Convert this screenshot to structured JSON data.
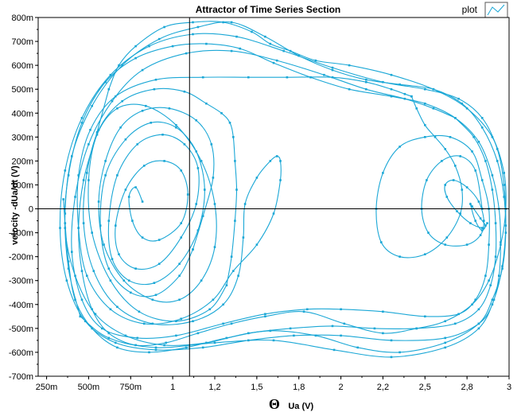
{
  "chart_data": {
    "type": "line",
    "title": "Attractor of Time Series Section",
    "xlabel_symbol": "Θ",
    "xlabel": "Ua (V)",
    "ylabel": "velocity -dUa/dt  (V)",
    "xlim": [
      0.2,
      3.0
    ],
    "ylim": [
      -0.7,
      0.8
    ],
    "x_ticks": [
      {
        "value": 0.25,
        "label": "250m"
      },
      {
        "value": 0.5,
        "label": "500m"
      },
      {
        "value": 0.75,
        "label": "750m"
      },
      {
        "value": 1.0,
        "label": "1"
      },
      {
        "value": 1.25,
        "label": "1,2"
      },
      {
        "value": 1.5,
        "label": "1,5"
      },
      {
        "value": 1.75,
        "label": "1,8"
      },
      {
        "value": 2.0,
        "label": "2"
      },
      {
        "value": 2.25,
        "label": "2,2"
      },
      {
        "value": 2.5,
        "label": "2,5"
      },
      {
        "value": 2.75,
        "label": "2,8"
      },
      {
        "value": 3.0,
        "label": "3"
      }
    ],
    "y_ticks": [
      {
        "value": 0.8,
        "label": "800m"
      },
      {
        "value": 0.7,
        "label": "700m"
      },
      {
        "value": 0.6,
        "label": "600m"
      },
      {
        "value": 0.5,
        "label": "500m"
      },
      {
        "value": 0.4,
        "label": "400m"
      },
      {
        "value": 0.3,
        "label": "300m"
      },
      {
        "value": 0.2,
        "label": "200m"
      },
      {
        "value": 0.1,
        "label": "100m"
      },
      {
        "value": 0.0,
        "label": "0"
      },
      {
        "value": -0.1,
        "label": "-100m"
      },
      {
        "value": -0.2,
        "label": "-200m"
      },
      {
        "value": -0.3,
        "label": "-300m"
      },
      {
        "value": -0.4,
        "label": "-400m"
      },
      {
        "value": -0.5,
        "label": "-500m"
      },
      {
        "value": -0.6,
        "label": "-600m"
      },
      {
        "value": -0.7,
        "label": "-700m"
      }
    ],
    "cursor": {
      "x": 1.1,
      "y": 0.0
    },
    "legend": {
      "label": "plot",
      "position": "top-right"
    },
    "grid": false,
    "series_color": "#1aa7d6",
    "series": [
      {
        "segments": [
          {
            "x": [
              0.82,
              0.78,
              0.74,
              0.76,
              0.82,
              0.92,
              1.05,
              1.09,
              1.05,
              0.95,
              0.83,
              0.72,
              0.66,
              0.68,
              0.78,
              0.92,
              1.05,
              1.14,
              1.15,
              1.07,
              0.94,
              0.79,
              0.67,
              0.62,
              0.64,
              0.74,
              0.89,
              1.04,
              1.15,
              1.19,
              1.14,
              1.02,
              0.87,
              0.72,
              0.6,
              0.57,
              0.62,
              0.75,
              0.9,
              1.04,
              1.12
            ],
            "y": [
              0.03,
              0.09,
              0.05,
              -0.05,
              -0.12,
              -0.13,
              -0.06,
              0.06,
              0.16,
              0.2,
              0.18,
              0.08,
              -0.07,
              -0.19,
              -0.25,
              -0.23,
              -0.12,
              0.02,
              0.17,
              0.27,
              0.31,
              0.27,
              0.14,
              -0.05,
              -0.21,
              -0.3,
              -0.31,
              -0.23,
              -0.09,
              0.08,
              0.24,
              0.34,
              0.36,
              0.29,
              0.14,
              -0.07,
              -0.25,
              -0.35,
              -0.36,
              -0.28,
              -0.17
            ]
          },
          {
            "x": [
              2.87,
              2.84,
              2.8,
              2.77,
              2.78,
              2.83,
              2.86,
              2.84,
              2.77,
              2.69,
              2.63,
              2.62,
              2.67,
              2.75,
              2.82,
              2.85,
              2.83,
              2.75,
              2.62,
              2.52,
              2.48,
              2.51,
              2.6,
              2.71,
              2.8,
              2.84
            ],
            "y": [
              -0.06,
              -0.09,
              -0.05,
              0.02,
              0.01,
              -0.04,
              -0.07,
              -0.08,
              -0.06,
              -0.01,
              0.05,
              0.1,
              0.12,
              0.09,
              0.03,
              -0.05,
              -0.11,
              -0.15,
              -0.15,
              -0.1,
              0.0,
              0.12,
              0.2,
              0.22,
              0.16,
              0.0
            ]
          },
          {
            "x": [
              1.12,
              1.18,
              1.24,
              1.23,
              1.14,
              0.98,
              0.82,
              0.69,
              0.6,
              0.56,
              0.59,
              0.71,
              0.88,
              1.04,
              1.17,
              1.25,
              1.25,
              1.17,
              1.02,
              0.84,
              0.67,
              0.55,
              0.5,
              0.52,
              0.63,
              0.8,
              1.02,
              1.22,
              1.32
            ],
            "y": [
              -0.17,
              -0.03,
              0.13,
              0.27,
              0.37,
              0.42,
              0.41,
              0.34,
              0.2,
              0.03,
              -0.15,
              -0.3,
              -0.38,
              -0.38,
              -0.3,
              -0.16,
              0.02,
              0.2,
              0.35,
              0.43,
              0.42,
              0.31,
              0.12,
              -0.1,
              -0.3,
              -0.43,
              -0.47,
              -0.42,
              -0.32
            ]
          },
          {
            "x": [
              1.32,
              1.35,
              1.37,
              1.38,
              1.37,
              1.36,
              1.34,
              1.29,
              1.2,
              1.07,
              0.89,
              0.7,
              0.56,
              0.49,
              0.47,
              0.53,
              0.67,
              0.88,
              1.12,
              1.3,
              1.39,
              1.42,
              1.43,
              1.5,
              1.58,
              1.62,
              1.64,
              1.64,
              1.6,
              1.5,
              1.36,
              1.24,
              1.05,
              0.83,
              0.63,
              0.49,
              0.44,
              0.44,
              0.51,
              0.66,
              0.9,
              1.18,
              1.45,
              1.68,
              1.95,
              2.15,
              2.3,
              2.38,
              2.42
            ],
            "y": [
              -0.32,
              -0.2,
              -0.05,
              0.08,
              0.2,
              0.3,
              0.36,
              0.4,
              0.44,
              0.49,
              0.5,
              0.45,
              0.33,
              0.15,
              -0.06,
              -0.26,
              -0.41,
              -0.48,
              -0.47,
              -0.4,
              -0.28,
              -0.12,
              0.02,
              0.13,
              0.2,
              0.22,
              0.2,
              0.12,
              -0.02,
              -0.15,
              -0.26,
              -0.38,
              -0.46,
              -0.48,
              -0.42,
              -0.28,
              -0.08,
              0.14,
              0.33,
              0.47,
              0.54,
              0.55,
              0.55,
              0.55,
              0.55,
              0.53,
              0.5,
              0.48,
              0.47
            ]
          },
          {
            "x": [
              2.42,
              2.45,
              2.5,
              2.56,
              2.62,
              2.68,
              2.72,
              2.71,
              2.63,
              2.5,
              2.35,
              2.24,
              2.21,
              2.25,
              2.35,
              2.5,
              2.65,
              2.78,
              2.84,
              2.88,
              2.88,
              2.86,
              2.8,
              2.7,
              2.5,
              2.25,
              2.0,
              1.8,
              1.55,
              1.3,
              1.02,
              0.79,
              0.58,
              0.46,
              0.4,
              0.42,
              0.5,
              0.64,
              0.82,
              1.08,
              1.35,
              1.62,
              1.9,
              2.15,
              2.38,
              2.55,
              2.68
            ],
            "y": [
              0.47,
              0.42,
              0.35,
              0.3,
              0.25,
              0.18,
              0.08,
              -0.02,
              -0.12,
              -0.19,
              -0.2,
              -0.14,
              0.0,
              0.15,
              0.26,
              0.3,
              0.3,
              0.24,
              0.12,
              0.0,
              -0.15,
              -0.28,
              -0.38,
              -0.44,
              -0.45,
              -0.43,
              -0.42,
              -0.42,
              -0.44,
              -0.48,
              -0.53,
              -0.54,
              -0.5,
              -0.38,
              -0.18,
              0.05,
              0.27,
              0.45,
              0.58,
              0.65,
              0.66,
              0.62,
              0.56,
              0.5,
              0.46,
              0.42,
              0.38
            ]
          },
          {
            "x": [
              2.68,
              2.79,
              2.86,
              2.9,
              2.92,
              2.92,
              2.89,
              2.82,
              2.68,
              2.45,
              2.2,
              1.95,
              1.7,
              1.45,
              1.2,
              0.95,
              0.72,
              0.54,
              0.42,
              0.36,
              0.38,
              0.46,
              0.6,
              0.78,
              1.0,
              1.2,
              1.4,
              1.6,
              1.82,
              2.05,
              2.3,
              2.5,
              2.68,
              2.82,
              2.9,
              2.94,
              2.95,
              2.94,
              2.9,
              2.82,
              2.62,
              2.3,
              2.0,
              1.72,
              1.45,
              1.18,
              0.9,
              0.66,
              0.48,
              0.37,
              0.33,
              0.36,
              0.46,
              0.63,
              0.86,
              1.12,
              1.38,
              1.66,
              1.95,
              2.25,
              2.5,
              2.7,
              2.84,
              2.93,
              2.97,
              2.98,
              2.96,
              2.91,
              2.82,
              2.62,
              2.3,
              1.96,
              1.6,
              1.25,
              0.9,
              0.62,
              0.45
            ],
            "y": [
              0.38,
              0.3,
              0.2,
              0.08,
              -0.06,
              -0.2,
              -0.32,
              -0.42,
              -0.48,
              -0.5,
              -0.5,
              -0.49,
              -0.5,
              -0.52,
              -0.56,
              -0.57,
              -0.53,
              -0.44,
              -0.28,
              -0.08,
              0.14,
              0.36,
              0.53,
              0.63,
              0.68,
              0.69,
              0.67,
              0.61,
              0.55,
              0.5,
              0.47,
              0.44,
              0.38,
              0.28,
              0.14,
              0.0,
              -0.14,
              -0.28,
              -0.4,
              -0.48,
              -0.54,
              -0.55,
              -0.53,
              -0.53,
              -0.55,
              -0.58,
              -0.59,
              -0.56,
              -0.47,
              -0.3,
              -0.08,
              0.16,
              0.38,
              0.56,
              0.68,
              0.73,
              0.72,
              0.66,
              0.59,
              0.53,
              0.5,
              0.46,
              0.38,
              0.25,
              0.1,
              -0.07,
              -0.24,
              -0.38,
              -0.5,
              -0.58,
              -0.62,
              -0.59,
              -0.55,
              -0.56,
              -0.58,
              -0.54,
              -0.45
            ]
          },
          {
            "x": [
              0.45,
              0.38,
              0.36,
              0.4,
              0.52,
              0.7,
              0.92,
              1.15,
              1.35,
              1.55,
              1.75,
              1.95,
              2.15,
              2.35,
              2.55,
              2.72,
              2.84,
              2.93,
              2.97,
              2.98,
              2.96,
              2.9,
              2.82,
              2.62,
              2.35,
              2.1,
              1.85,
              1.58,
              1.32,
              1.08,
              0.86,
              0.67,
              0.52,
              0.42,
              0.38,
              0.36,
              0.35
            ],
            "y": [
              -0.45,
              -0.25,
              -0.02,
              0.22,
              0.43,
              0.6,
              0.71,
              0.76,
              0.78,
              0.72,
              0.64,
              0.58,
              0.54,
              0.52,
              0.5,
              0.44,
              0.34,
              0.2,
              0.05,
              -0.1,
              -0.25,
              -0.38,
              -0.48,
              -0.56,
              -0.6,
              -0.58,
              -0.53,
              -0.51,
              -0.54,
              -0.58,
              -0.6,
              -0.58,
              -0.5,
              -0.38,
              -0.22,
              -0.06,
              0.04
            ]
          },
          {
            "x": [
              0.62,
              0.68,
              0.78,
              0.95,
              1.12,
              1.3,
              1.47,
              1.58,
              1.7,
              1.85,
              2.05,
              2.3,
              2.55,
              2.75,
              2.9,
              2.97,
              2.98,
              2.95,
              2.88,
              2.78,
              2.62,
              2.45,
              2.25,
              2.02,
              1.78,
              1.55,
              1.35,
              1.15,
              0.96,
              0.78,
              0.62,
              0.52,
              0.46,
              0.44,
              0.47,
              0.55,
              0.62
            ],
            "y": [
              0.5,
              0.6,
              0.68,
              0.76,
              0.78,
              0.78,
              0.74,
              0.69,
              0.66,
              0.62,
              0.6,
              0.56,
              0.5,
              0.42,
              0.3,
              0.15,
              0.0,
              -0.15,
              -0.3,
              -0.4,
              -0.47,
              -0.5,
              -0.52,
              -0.48,
              -0.43,
              -0.45,
              -0.48,
              -0.52,
              -0.56,
              -0.57,
              -0.52,
              -0.42,
              -0.26,
              -0.08,
              0.12,
              0.32,
              0.5
            ]
          }
        ]
      }
    ]
  }
}
